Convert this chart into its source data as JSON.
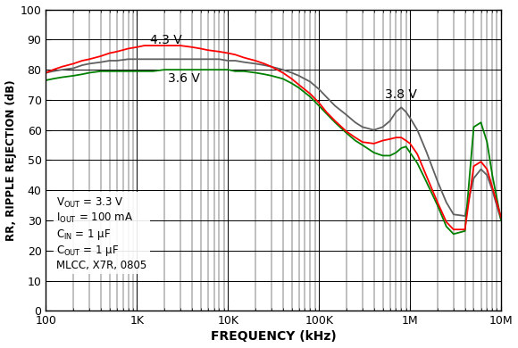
{
  "xlabel": "FREQUENCY (kHz)",
  "ylabel": "RR, RIPPLE REJECTION (dB)",
  "xlim": [
    100,
    10000000
  ],
  "ylim": [
    0,
    100
  ],
  "yticks": [
    0,
    10,
    20,
    30,
    40,
    50,
    60,
    70,
    80,
    90,
    100
  ],
  "label_43v": "4.3 V",
  "label_36v": "3.6 V",
  "label_38v": "3.8 V",
  "color_red": "#FF0000",
  "color_gray": "#606060",
  "color_green": "#008000",
  "bg_color": "#FFFFFF",
  "grid_color": "#000000",
  "freq_pts": [
    100,
    120,
    150,
    200,
    250,
    300,
    400,
    500,
    600,
    800,
    1000,
    1200,
    1500,
    2000,
    2500,
    3000,
    4000,
    5000,
    6000,
    8000,
    10000,
    12000,
    15000,
    20000,
    25000,
    30000,
    40000,
    50000,
    60000,
    80000,
    100000,
    120000,
    150000,
    200000,
    250000,
    300000,
    400000,
    500000,
    600000,
    700000,
    800000,
    900000,
    1000000,
    1200000,
    1500000,
    2000000,
    2500000,
    3000000,
    4000000,
    5000000,
    6000000,
    7000000,
    8000000,
    10000000
  ],
  "psrr_red": [
    79.0,
    80.0,
    81.0,
    82.0,
    83.0,
    83.5,
    84.5,
    85.5,
    86.0,
    87.0,
    87.5,
    88.0,
    88.0,
    88.0,
    88.0,
    88.0,
    87.5,
    87.0,
    86.5,
    86.0,
    85.5,
    85.0,
    84.0,
    83.0,
    82.0,
    81.0,
    79.0,
    77.0,
    75.0,
    72.0,
    69.0,
    66.0,
    63.0,
    59.5,
    57.5,
    56.0,
    55.5,
    56.5,
    57.0,
    57.5,
    57.5,
    56.5,
    55.5,
    52.0,
    45.0,
    36.0,
    29.5,
    27.0,
    27.0,
    48.0,
    49.5,
    47.0,
    41.0,
    31.0
  ],
  "psrr_gray": [
    79.0,
    79.5,
    80.0,
    80.5,
    81.5,
    82.0,
    82.5,
    83.0,
    83.0,
    83.5,
    83.5,
    83.5,
    83.5,
    83.5,
    83.5,
    83.5,
    83.5,
    83.5,
    83.5,
    83.5,
    83.0,
    83.0,
    82.5,
    82.0,
    81.5,
    81.0,
    80.0,
    79.0,
    78.0,
    76.0,
    73.5,
    71.0,
    68.0,
    65.0,
    62.5,
    61.0,
    60.0,
    61.0,
    63.0,
    66.0,
    67.5,
    66.0,
    64.0,
    60.0,
    53.0,
    43.0,
    36.0,
    32.0,
    31.5,
    44.0,
    47.0,
    45.0,
    40.0,
    30.0
  ],
  "psrr_green": [
    76.5,
    77.0,
    77.5,
    78.0,
    78.5,
    79.0,
    79.5,
    79.5,
    79.5,
    79.5,
    79.5,
    79.5,
    79.5,
    80.0,
    80.0,
    80.0,
    80.0,
    80.0,
    80.0,
    80.0,
    80.0,
    79.5,
    79.5,
    79.0,
    78.5,
    78.0,
    77.0,
    75.5,
    74.0,
    71.0,
    68.0,
    65.5,
    62.5,
    59.0,
    56.5,
    55.0,
    52.5,
    51.5,
    51.5,
    52.5,
    54.0,
    54.5,
    52.5,
    49.0,
    43.0,
    35.0,
    28.0,
    25.5,
    26.5,
    61.0,
    62.5,
    56.0,
    45.0,
    30.0
  ]
}
